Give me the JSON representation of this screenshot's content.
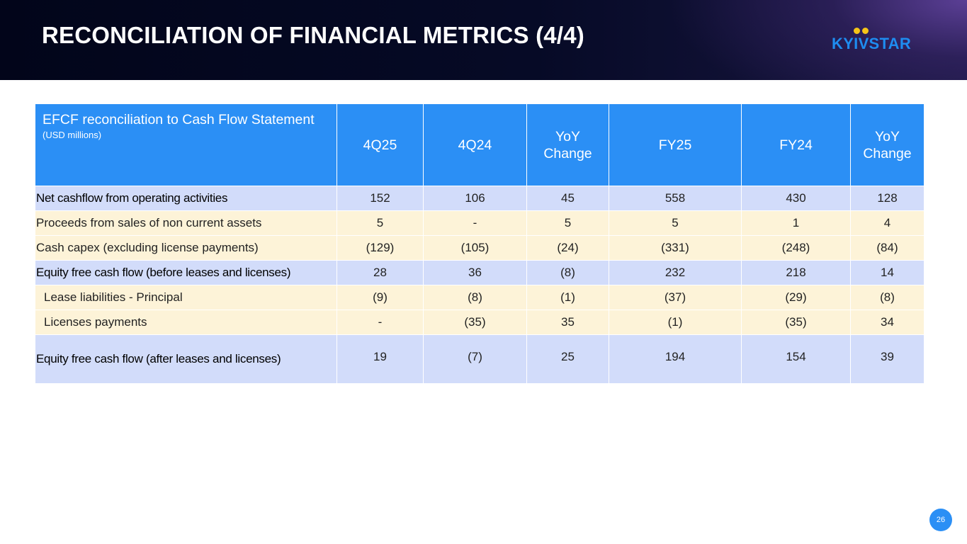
{
  "header": {
    "title": "RECONCILIATION OF FINANCIAL METRICS (4/4)",
    "logo_text": "KYIVSTAR",
    "brand_color": "#2b8ff5",
    "logo_dot_color": "#f5c518"
  },
  "table": {
    "label_header": "EFCF reconciliation to Cash Flow Statement",
    "label_subheader": "(USD millions)",
    "columns": [
      "4Q25",
      "4Q24",
      "YoY Change",
      "FY25",
      "FY24",
      "YoY Change"
    ],
    "rows": [
      {
        "label": "Net cashflow from operating activities",
        "values": [
          "152",
          "106",
          "45",
          "558",
          "430",
          "128"
        ]
      },
      {
        "label": "Proceeds from sales of non current assets",
        "values": [
          "5",
          "-",
          "5",
          "5",
          "1",
          "4"
        ]
      },
      {
        "label": "Cash capex (excluding license payments)",
        "values": [
          "(129)",
          "(105)",
          "(24)",
          "(331)",
          "(248)",
          "(84)"
        ]
      },
      {
        "label": "Equity free cash flow (before leases and licenses)",
        "values": [
          "28",
          "36",
          "(8)",
          "232",
          "218",
          "14"
        ]
      },
      {
        "label": "Lease liabilities - Principal",
        "values": [
          "(9)",
          "(8)",
          "(1)",
          "(37)",
          "(29)",
          "(8)"
        ]
      },
      {
        "label": "Licenses payments",
        "values": [
          "-",
          "(35)",
          "35",
          "(1)",
          "(35)",
          "34"
        ]
      },
      {
        "label": "Equity free cash flow (after leases and licenses)",
        "values": [
          "19",
          "(7)",
          "25",
          "194",
          "154",
          "39"
        ]
      }
    ]
  },
  "footer": {
    "page_number": "26"
  }
}
